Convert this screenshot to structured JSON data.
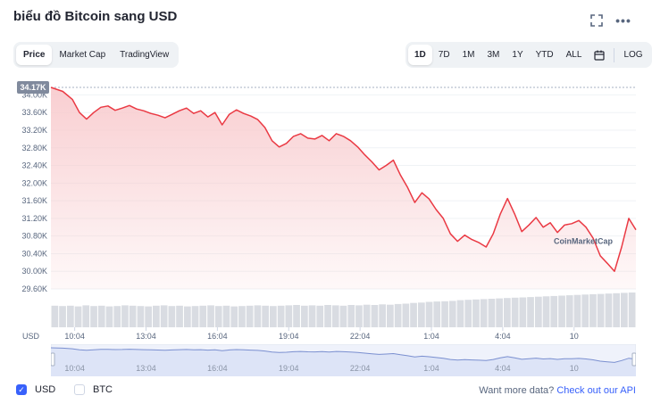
{
  "header": {
    "title": "biểu đồ Bitcoin sang USD",
    "expand_icon": "expand-icon",
    "more_icon": "more-icon",
    "more_glyph": "•••"
  },
  "chart_tabs": [
    {
      "label": "Price",
      "active": true
    },
    {
      "label": "Market Cap",
      "active": false
    },
    {
      "label": "TradingView",
      "active": false
    }
  ],
  "ranges": [
    {
      "label": "1D",
      "active": true
    },
    {
      "label": "7D",
      "active": false
    },
    {
      "label": "1M",
      "active": false
    },
    {
      "label": "3M",
      "active": false
    },
    {
      "label": "1Y",
      "active": false
    },
    {
      "label": "YTD",
      "active": false
    },
    {
      "label": "ALL",
      "active": false
    }
  ],
  "calendar_icon": "calendar-icon",
  "log_label": "LOG",
  "current_price_badge": "34.17K",
  "watermark": "CoinMarketCap",
  "axis_currency": "USD",
  "colors": {
    "line": "#ea3943",
    "area_top": "#f8c9cc",
    "badge": "#808a9d",
    "accent": "#3861fb",
    "volume": "#d9dce2"
  },
  "chart_data": {
    "type": "line",
    "title": "",
    "xlabel": "",
    "ylabel": "USD",
    "yticks": [
      "34.00K",
      "33.60K",
      "33.20K",
      "32.80K",
      "32.40K",
      "32.00K",
      "31.60K",
      "31.20K",
      "30.80K",
      "30.40K",
      "30.00K",
      "29.60K"
    ],
    "ytick_values": [
      34000,
      33600,
      33200,
      32800,
      32400,
      32000,
      31600,
      31200,
      30800,
      30400,
      30000,
      29600
    ],
    "ylim": [
      29600,
      34170
    ],
    "xticks": [
      "10:04",
      "13:04",
      "16:04",
      "19:04",
      "22:04",
      "1:04",
      "4:04",
      "10"
    ],
    "xtick_hours": [
      1,
      4,
      7,
      10,
      13,
      16,
      19,
      22
    ],
    "xlim_hours": [
      0,
      24
    ],
    "grid": true,
    "series": [
      {
        "points": [
          [
            0.0,
            34170
          ],
          [
            0.5,
            34080
          ],
          [
            0.9,
            33900
          ],
          [
            1.2,
            33600
          ],
          [
            1.5,
            33450
          ],
          [
            1.8,
            33600
          ],
          [
            2.1,
            33720
          ],
          [
            2.4,
            33750
          ],
          [
            2.7,
            33650
          ],
          [
            3.0,
            33700
          ],
          [
            3.3,
            33760
          ],
          [
            3.6,
            33680
          ],
          [
            3.9,
            33640
          ],
          [
            4.2,
            33580
          ],
          [
            4.5,
            33540
          ],
          [
            4.8,
            33480
          ],
          [
            5.1,
            33560
          ],
          [
            5.4,
            33640
          ],
          [
            5.7,
            33700
          ],
          [
            6.0,
            33580
          ],
          [
            6.3,
            33640
          ],
          [
            6.6,
            33500
          ],
          [
            6.9,
            33600
          ],
          [
            7.2,
            33320
          ],
          [
            7.5,
            33560
          ],
          [
            7.8,
            33660
          ],
          [
            8.1,
            33580
          ],
          [
            8.4,
            33520
          ],
          [
            8.7,
            33440
          ],
          [
            9.0,
            33260
          ],
          [
            9.3,
            32960
          ],
          [
            9.6,
            32820
          ],
          [
            9.9,
            32900
          ],
          [
            10.2,
            33060
          ],
          [
            10.5,
            33120
          ],
          [
            10.8,
            33020
          ],
          [
            11.1,
            33000
          ],
          [
            11.4,
            33080
          ],
          [
            11.7,
            32960
          ],
          [
            12.0,
            33120
          ],
          [
            12.3,
            33060
          ],
          [
            12.6,
            32960
          ],
          [
            12.9,
            32820
          ],
          [
            13.2,
            32640
          ],
          [
            13.5,
            32480
          ],
          [
            13.8,
            32300
          ],
          [
            14.1,
            32400
          ],
          [
            14.4,
            32520
          ],
          [
            14.7,
            32180
          ],
          [
            15.0,
            31900
          ],
          [
            15.3,
            31560
          ],
          [
            15.6,
            31780
          ],
          [
            15.9,
            31640
          ],
          [
            16.2,
            31400
          ],
          [
            16.5,
            31200
          ],
          [
            16.8,
            30850
          ],
          [
            17.1,
            30680
          ],
          [
            17.4,
            30820
          ],
          [
            17.7,
            30720
          ],
          [
            18.0,
            30650
          ],
          [
            18.3,
            30550
          ],
          [
            18.6,
            30850
          ],
          [
            18.9,
            31300
          ],
          [
            19.2,
            31650
          ],
          [
            19.5,
            31300
          ],
          [
            19.8,
            30900
          ],
          [
            20.1,
            31050
          ],
          [
            20.4,
            31220
          ],
          [
            20.7,
            31000
          ],
          [
            21.0,
            31100
          ],
          [
            21.3,
            30880
          ],
          [
            21.6,
            31050
          ],
          [
            21.9,
            31080
          ],
          [
            22.2,
            31150
          ],
          [
            22.5,
            31000
          ],
          [
            22.8,
            30750
          ],
          [
            23.1,
            30350
          ],
          [
            23.4,
            30180
          ],
          [
            23.7,
            30000
          ],
          [
            24.0,
            30550
          ],
          [
            24.3,
            31200
          ],
          [
            24.6,
            30940
          ]
        ]
      }
    ],
    "volume_label": "",
    "volume_values": [
      0.62,
      0.61,
      0.62,
      0.6,
      0.63,
      0.61,
      0.62,
      0.6,
      0.61,
      0.63,
      0.62,
      0.61,
      0.6,
      0.62,
      0.63,
      0.61,
      0.62,
      0.6,
      0.61,
      0.62,
      0.63,
      0.61,
      0.62,
      0.6,
      0.61,
      0.62,
      0.63,
      0.62,
      0.61,
      0.62,
      0.63,
      0.64,
      0.62,
      0.63,
      0.62,
      0.64,
      0.63,
      0.62,
      0.64,
      0.63,
      0.65,
      0.64,
      0.66,
      0.65,
      0.67,
      0.68,
      0.7,
      0.71,
      0.73,
      0.74,
      0.75,
      0.76,
      0.78,
      0.79,
      0.8,
      0.81,
      0.82,
      0.83,
      0.84,
      0.85,
      0.86,
      0.87,
      0.88,
      0.89,
      0.9,
      0.91,
      0.92,
      0.93,
      0.94,
      0.95,
      0.96,
      0.97,
      0.98,
      0.99,
      1.0
    ]
  },
  "navigator": {
    "xticks": [
      "10:04",
      "13:04",
      "16:04",
      "19:04",
      "22:04",
      "1:04",
      "4:04",
      "10"
    ]
  },
  "legend": [
    {
      "label": "USD",
      "checked": true
    },
    {
      "label": "BTC",
      "checked": false
    }
  ],
  "check_glyph": "✓",
  "footer": {
    "question": "Want more data?",
    "link": "Check out our API"
  }
}
